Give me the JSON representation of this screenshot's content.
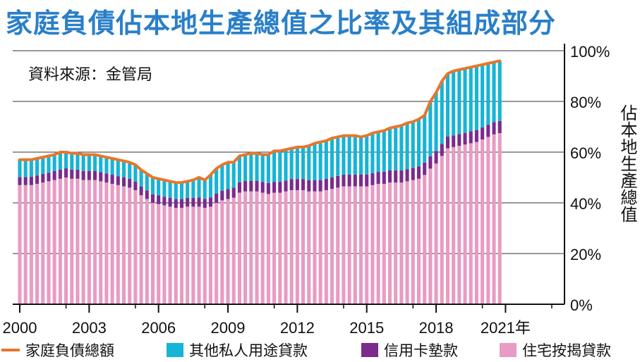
{
  "title": "家庭負債佔本地生產總值之比率及其組成部分",
  "source": "資料來源：金管局",
  "chart_data": {
    "type": "bar",
    "ylabel": "佔本地生產總值",
    "ylim": [
      0,
      100
    ],
    "yticks": [
      "0%",
      "20%",
      "40%",
      "60%",
      "80%",
      "100%"
    ],
    "xticks": [
      {
        "year": 2000,
        "label": "2000"
      },
      {
        "year": 2003,
        "label": "2003"
      },
      {
        "year": 2006,
        "label": "2006"
      },
      {
        "year": 2009,
        "label": "2009"
      },
      {
        "year": 2012,
        "label": "2012"
      },
      {
        "year": 2015,
        "label": "2015"
      },
      {
        "year": 2018,
        "label": "2018"
      },
      {
        "year": 2021,
        "label": "2021年"
      }
    ],
    "x_start": 2000.0,
    "x_step": 0.25,
    "series": [
      {
        "name": "住宅按揭貸款",
        "color": "#e89bc3",
        "values": [
          47,
          47,
          47,
          47.5,
          48,
          48.5,
          49,
          49.5,
          50,
          49.5,
          49.5,
          49,
          49,
          49,
          48.5,
          48,
          47.5,
          47,
          46.5,
          46,
          45,
          43,
          41.5,
          40,
          39.5,
          39,
          38.5,
          38,
          38,
          38.5,
          38.5,
          38.5,
          38,
          38.5,
          40,
          41,
          41.5,
          42,
          44,
          44.5,
          44.5,
          44.5,
          44,
          43.5,
          44,
          44,
          44.5,
          45,
          45,
          45,
          44.5,
          44.5,
          44.5,
          45,
          45.5,
          46,
          46.5,
          46.5,
          46.5,
          46.5,
          46.5,
          47,
          47.5,
          47.5,
          48,
          48,
          48,
          48.5,
          49,
          49.5,
          51,
          53.5,
          55.5,
          58.5,
          61.5,
          62,
          62.5,
          63,
          63.5,
          64,
          65,
          66,
          67,
          67.5
        ]
      },
      {
        "name": "信用卡墊款",
        "color": "#7a2b8c",
        "values": [
          3.2,
          3.2,
          3.3,
          3.3,
          3.4,
          3.4,
          3.5,
          3.6,
          3.6,
          3.6,
          3.6,
          3.6,
          3.6,
          3.6,
          3.6,
          3.6,
          3.6,
          3.5,
          3.5,
          3.5,
          3.4,
          3.4,
          3.4,
          3.4,
          3.4,
          3.4,
          3.5,
          3.5,
          3.5,
          3.5,
          3.5,
          3.6,
          3.6,
          3.6,
          3.7,
          3.8,
          3.9,
          4.0,
          4.1,
          4.1,
          4.2,
          4.2,
          4.2,
          4.3,
          4.3,
          4.3,
          4.3,
          4.4,
          4.4,
          4.4,
          4.4,
          4.4,
          4.5,
          4.5,
          4.5,
          4.6,
          4.6,
          4.6,
          4.6,
          4.7,
          4.7,
          4.7,
          4.7,
          4.8,
          4.8,
          4.8,
          4.8,
          4.8,
          4.8,
          4.9,
          4.9,
          4.9,
          4.9,
          4.7,
          4.6,
          4.6,
          4.6,
          4.6,
          4.7,
          4.7,
          4.7,
          4.8,
          4.8,
          4.8
        ]
      },
      {
        "name": "其他私人用途貸款",
        "color": "#16b4d6",
        "values": [
          6.8,
          6.8,
          6.7,
          6.7,
          6.6,
          6.6,
          6.5,
          6.9,
          6.4,
          6.4,
          6.4,
          6.4,
          6.4,
          6.4,
          6.4,
          6.4,
          6.4,
          6.5,
          6.5,
          6.5,
          6.6,
          6.6,
          6.6,
          6.6,
          6.6,
          6.6,
          6.5,
          6.5,
          6.5,
          6.5,
          7.0,
          7.9,
          7.4,
          8.9,
          9.8,
          10.2,
          10.6,
          10.0,
          10.4,
          10.4,
          10.8,
          10.8,
          10.8,
          11.2,
          11.7,
          11.7,
          12.2,
          12.1,
          12.6,
          12.6,
          13.6,
          14.6,
          14.5,
          15.0,
          15.5,
          15.4,
          15.4,
          15.4,
          15.4,
          14.8,
          15.3,
          15.8,
          15.8,
          16.2,
          16.7,
          17.2,
          17.7,
          18.2,
          18.2,
          18.6,
          18.6,
          21.6,
          23.1,
          24.8,
          24.9,
          25.4,
          25.4,
          25.4,
          25.3,
          25.3,
          24.8,
          24.2,
          23.7,
          23.7
        ]
      },
      {
        "name": "家庭負債總額",
        "color": "#e8762b",
        "type": "line",
        "values": [
          57,
          57,
          57,
          57.5,
          58,
          58.5,
          59,
          60,
          60,
          59.5,
          59.5,
          59,
          59,
          59,
          58.5,
          58,
          57.5,
          57,
          56.5,
          56,
          55,
          53,
          51.5,
          50,
          49.5,
          49,
          48.5,
          48,
          48,
          48.5,
          49,
          50,
          49,
          51,
          53.5,
          55,
          56,
          56,
          58.5,
          59,
          59.5,
          59.5,
          59,
          59,
          60.5,
          60.5,
          61,
          61.5,
          62,
          62,
          62.5,
          63.5,
          64,
          64.5,
          65.5,
          66,
          66.5,
          66.5,
          66.5,
          66,
          66.5,
          67.5,
          68,
          68.5,
          69.5,
          70,
          70.5,
          71.5,
          72,
          73,
          74.5,
          80,
          83.5,
          88,
          91,
          92,
          92.5,
          93,
          93.5,
          94,
          94.5,
          95,
          95.5,
          96
        ]
      }
    ]
  },
  "legend": [
    {
      "label": "家庭負債總額",
      "kind": "line",
      "color": "#e8762b"
    },
    {
      "label": "其他私人用途貸款",
      "kind": "box",
      "color": "#16b4d6"
    },
    {
      "label": "信用卡墊款",
      "kind": "box",
      "color": "#7a2b8c"
    },
    {
      "label": "住宅按揭貸款",
      "kind": "box",
      "color": "#e89bc3"
    }
  ]
}
